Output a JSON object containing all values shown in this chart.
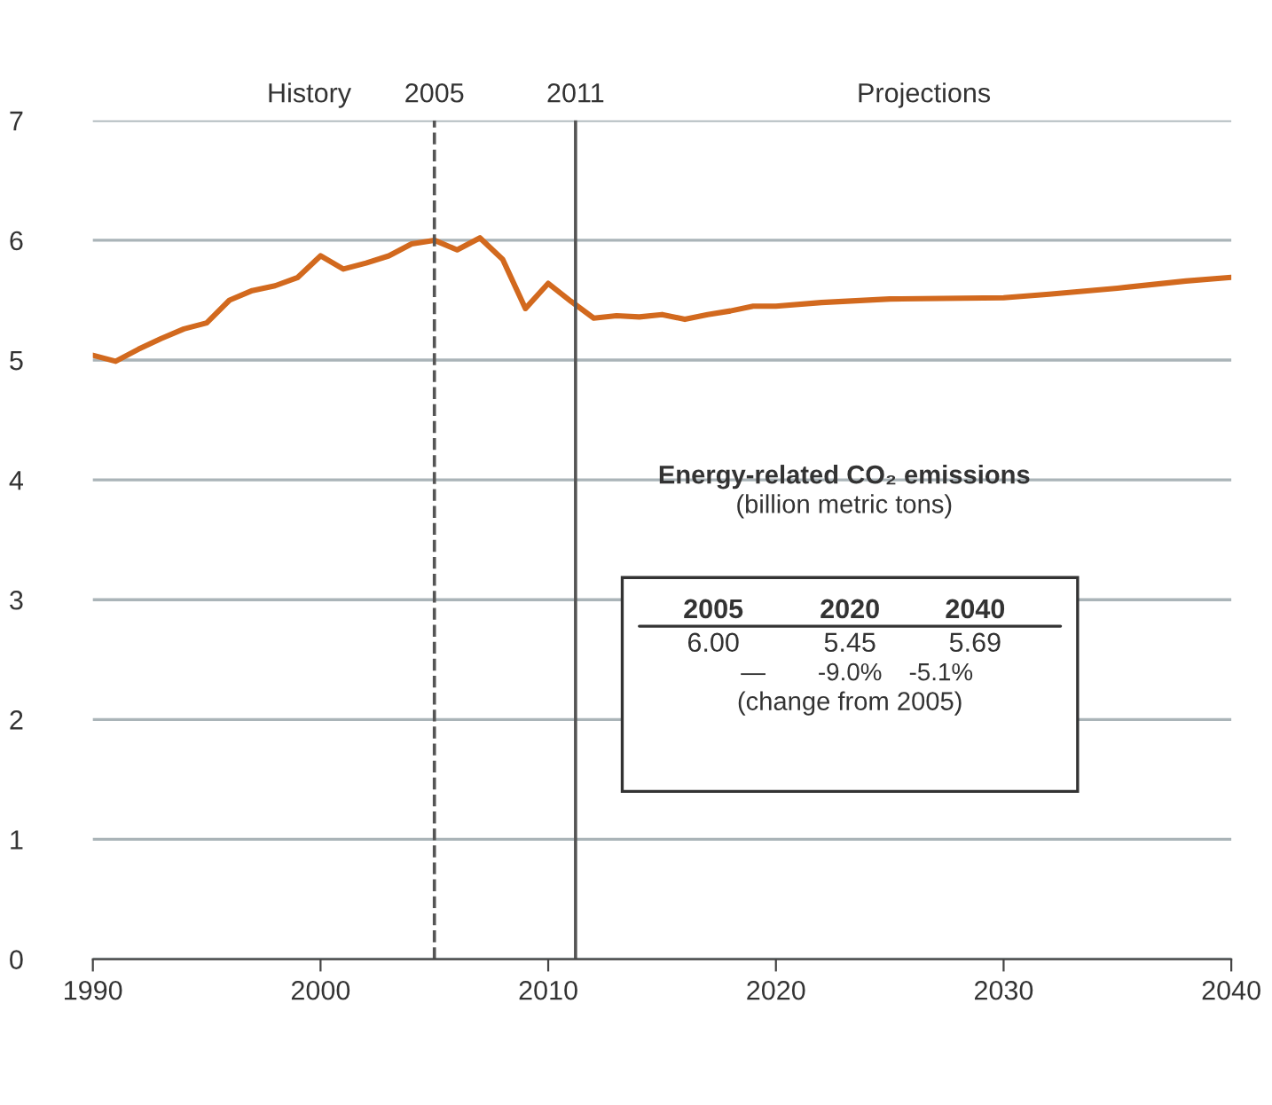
{
  "chart_data": {
    "type": "line",
    "x": [
      1990,
      1991,
      1992,
      1993,
      1994,
      1995,
      1996,
      1997,
      1998,
      1999,
      2000,
      2001,
      2002,
      2003,
      2004,
      2005,
      2006,
      2007,
      2008,
      2009,
      2010,
      2011,
      2012,
      2013,
      2014,
      2015,
      2016,
      2017,
      2018,
      2019,
      2020,
      2022,
      2025,
      2030,
      2032,
      2035,
      2038,
      2040
    ],
    "series": [
      {
        "color": "#d2691e",
        "values": [
          5.04,
          4.99,
          5.09,
          5.18,
          5.26,
          5.31,
          5.5,
          5.58,
          5.62,
          5.69,
          5.87,
          5.76,
          5.81,
          5.87,
          5.97,
          6.0,
          5.92,
          6.02,
          5.84,
          5.43,
          5.64,
          5.49,
          5.35,
          5.37,
          5.36,
          5.38,
          5.34,
          5.38,
          5.41,
          5.45,
          5.45,
          5.48,
          5.51,
          5.52,
          5.55,
          5.6,
          5.66,
          5.69
        ]
      }
    ],
    "xlim": [
      1990,
      2040
    ],
    "xticks": [
      1990,
      2000,
      2010,
      2020,
      2030,
      2040
    ],
    "ylim": [
      0,
      7
    ],
    "yticks": [
      0,
      1,
      2,
      3,
      4,
      5,
      6,
      7
    ],
    "grid": "y",
    "legend": false,
    "marker": "none",
    "line_style": "solid",
    "ref_lines": [
      {
        "axis": "x",
        "value": 2005,
        "label": "2005",
        "line_style": "dashed",
        "color": "#555555"
      },
      {
        "axis": "x",
        "value": 2011.2,
        "label": "2011",
        "line_style": "solid",
        "color": "#555555"
      }
    ],
    "annotations": [
      "History",
      "Projections",
      "Energy-related CO₂ emissions",
      "(billion metric tons)",
      "2005",
      "2020",
      "2040",
      "6.00",
      "5.45",
      "5.69",
      "—",
      "-9.0%",
      "-5.1%",
      "(change from 2005)"
    ]
  }
}
